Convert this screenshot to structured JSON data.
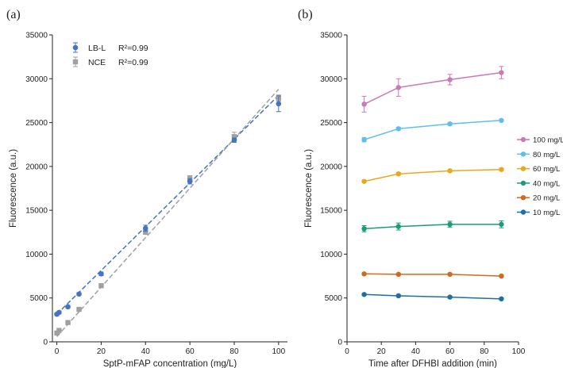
{
  "chart_data": [
    {
      "panel": "(a)",
      "type": "scatter",
      "xlabel": "SptP-mFAP concentration (mg/L)",
      "ylabel": "Fluorescence (a.u.)",
      "xlim": [
        -2,
        104
      ],
      "ylim": [
        0,
        35000
      ],
      "xticks": [
        0,
        20,
        40,
        60,
        80,
        100
      ],
      "yticks": [
        0,
        5000,
        10000,
        15000,
        20000,
        25000,
        30000,
        35000
      ],
      "legend_position": "top-left",
      "series": [
        {
          "name": "LB-L",
          "r2": "R²=0.99",
          "color": "#4472c4",
          "marker": "circle",
          "x": [
            0,
            1,
            5,
            10,
            20,
            40,
            60,
            80,
            100
          ],
          "y": [
            3150,
            3350,
            4000,
            5450,
            7750,
            12950,
            18300,
            23000,
            27150
          ],
          "err": [
            150,
            150,
            150,
            150,
            200,
            350,
            300,
            250,
            900
          ],
          "fit": [
            [
              0,
              3150
            ],
            [
              100,
              28100
            ]
          ]
        },
        {
          "name": "NCE",
          "r2": "R²=0.99",
          "color": "#a0a0a0",
          "marker": "square",
          "x": [
            0,
            1,
            5,
            10,
            20,
            40,
            60,
            80,
            100
          ],
          "y": [
            1000,
            1300,
            2200,
            3700,
            6400,
            12500,
            18600,
            23400,
            27800
          ],
          "err": [
            150,
            150,
            200,
            200,
            200,
            250,
            350,
            500,
            350
          ],
          "fit": [
            [
              0,
              600
            ],
            [
              100,
              28800
            ]
          ]
        }
      ]
    },
    {
      "panel": "(b)",
      "type": "line",
      "xlabel": "Time after DFHBI addition (min)",
      "ylabel": "Fluorescence (a.u.)",
      "xlim": [
        0,
        100
      ],
      "ylim": [
        0,
        35000
      ],
      "xticks": [
        0,
        20,
        40,
        60,
        80,
        100
      ],
      "yticks": [
        0,
        5000,
        10000,
        15000,
        20000,
        25000,
        30000,
        35000
      ],
      "legend_position": "right",
      "x": [
        10,
        30,
        60,
        90
      ],
      "series": [
        {
          "name": "100 mg/L",
          "color": "#c979b5",
          "values": [
            27100,
            29000,
            29900,
            30700
          ],
          "err": [
            900,
            1000,
            600,
            700
          ]
        },
        {
          "name": "80 mg/L",
          "color": "#5ec0ea",
          "values": [
            23050,
            24300,
            24850,
            25250
          ],
          "err": [
            250,
            150,
            150,
            100
          ]
        },
        {
          "name": "60 mg/L",
          "color": "#e9a81c",
          "values": [
            18300,
            19150,
            19500,
            19650
          ],
          "err": [
            100,
            150,
            100,
            150
          ]
        },
        {
          "name": "40 mg/L",
          "color": "#1a9b7a",
          "values": [
            12900,
            13150,
            13400,
            13400
          ],
          "err": [
            350,
            400,
            350,
            400
          ]
        },
        {
          "name": "20 mg/L",
          "color": "#d2691e",
          "values": [
            7750,
            7700,
            7700,
            7500
          ],
          "err": [
            100,
            100,
            100,
            100
          ]
        },
        {
          "name": "10 mg/L",
          "color": "#1f6fa3",
          "values": [
            5400,
            5250,
            5100,
            4900
          ],
          "err": [
            100,
            100,
            100,
            100
          ]
        }
      ]
    }
  ]
}
